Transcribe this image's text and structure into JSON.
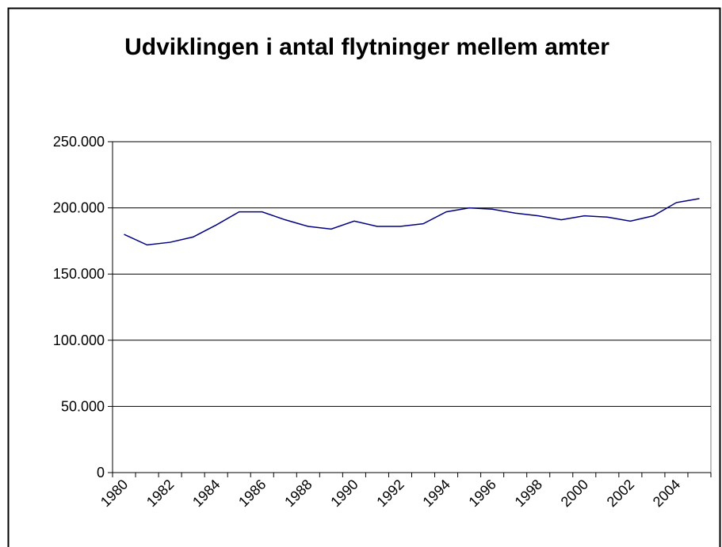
{
  "chart_data": {
    "type": "line",
    "title": "Udviklingen i antal flytninger mellem amter",
    "categories": [
      "1980",
      null,
      "1982",
      null,
      "1984",
      null,
      "1986",
      null,
      "1988",
      null,
      "1990",
      null,
      "1992",
      null,
      "1994",
      null,
      "1996",
      null,
      "1998",
      null,
      "2000",
      null,
      "2002",
      null,
      "2004",
      null
    ],
    "series": [
      {
        "color": "#000080",
        "values": [
          180000,
          172000,
          174000,
          178000,
          187000,
          197000,
          197000,
          191000,
          186000,
          184000,
          190000,
          186000,
          186000,
          188000,
          197000,
          200000,
          199000,
          196000,
          194000,
          191000,
          194000,
          193000,
          190000,
          194000,
          204000,
          207000
        ]
      }
    ],
    "ylim": [
      0,
      250000
    ],
    "yticks": [
      0,
      {
        "value": 50000,
        "label": "50.000"
      },
      {
        "value": 100000,
        "label": "100.000"
      },
      {
        "value": 150000,
        "label": "150.000"
      },
      {
        "value": 200000,
        "label": "200.000"
      },
      {
        "value": 250000,
        "label": "250.000"
      }
    ],
    "grid": true
  }
}
